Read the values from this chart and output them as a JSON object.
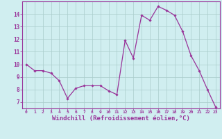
{
  "x": [
    0,
    1,
    2,
    3,
    4,
    5,
    6,
    7,
    8,
    9,
    10,
    11,
    12,
    13,
    14,
    15,
    16,
    17,
    18,
    19,
    20,
    21,
    22,
    23
  ],
  "y": [
    10.0,
    9.5,
    9.5,
    9.3,
    8.7,
    7.3,
    8.1,
    8.3,
    8.3,
    8.3,
    7.9,
    7.6,
    11.9,
    10.5,
    13.9,
    13.5,
    14.6,
    14.3,
    13.9,
    12.6,
    10.7,
    9.5,
    8.0,
    6.6
  ],
  "line_color": "#993399",
  "marker": "D",
  "markersize": 1.8,
  "linewidth": 0.9,
  "xlabel": "Windchill (Refroidissement éolien,°C)",
  "xlabel_fontsize": 6.5,
  "bg_color": "#d0eef0",
  "grid_color": "#aacccc",
  "axis_color": "#993399",
  "tick_color": "#993399",
  "label_color": "#993399",
  "xlim": [
    -0.5,
    23.5
  ],
  "ylim": [
    6.5,
    15.0
  ],
  "yticks": [
    7,
    8,
    9,
    10,
    11,
    12,
    13,
    14
  ],
  "xticks": [
    0,
    1,
    2,
    3,
    4,
    5,
    6,
    7,
    8,
    9,
    10,
    11,
    12,
    13,
    14,
    15,
    16,
    17,
    18,
    19,
    20,
    21,
    22,
    23
  ]
}
